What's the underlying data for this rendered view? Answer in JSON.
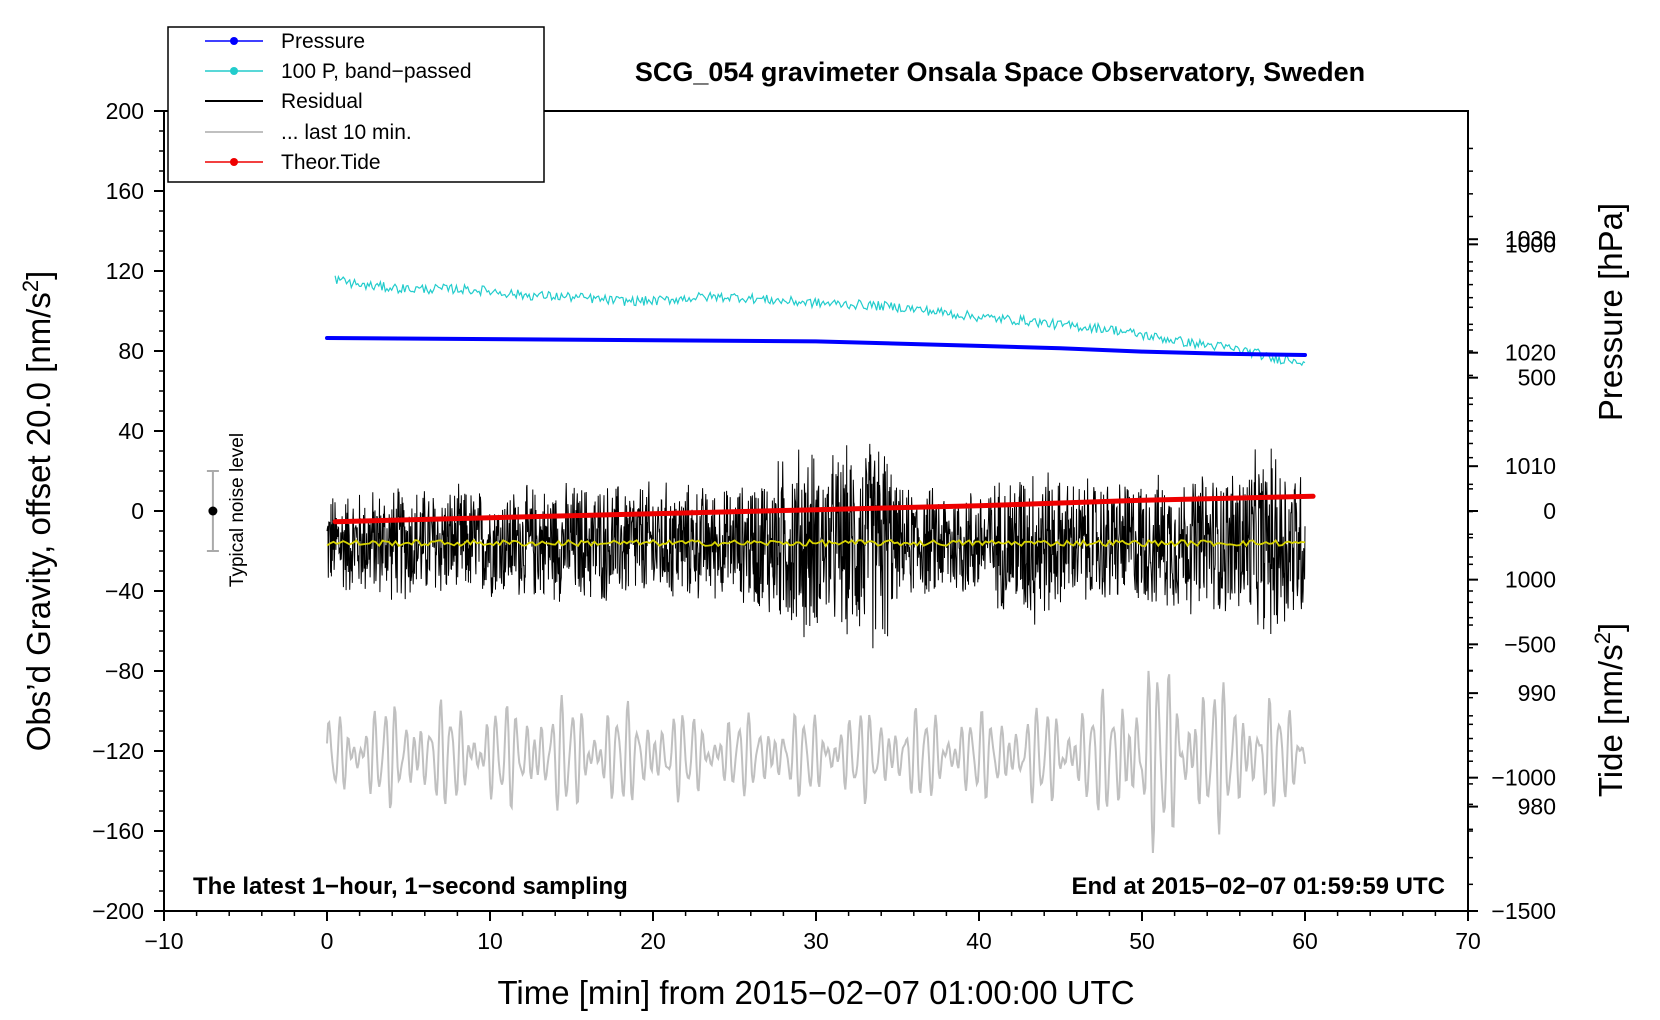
{
  "chart_data": {
    "type": "line",
    "title": "SCG_054 gravimeter Onsala Space Observatory, Sweden",
    "xlabel": "Time [min] from 2015−02−07 01:00:00 UTC",
    "ylabel_left_main": "Obs’d Gravity, offset 20.0 [nm/s",
    "ylabel_left_sup": "2",
    "ylabel_left_close": "]",
    "ylabel_right_pressure": "Pressure [hPa]",
    "ylabel_right_tide_main": "Tide [nm/s",
    "ylabel_right_tide_sup": "2",
    "ylabel_right_tide_close": "]",
    "xlim": [
      -10,
      70
    ],
    "ylim": [
      -200,
      200
    ],
    "pressure_axis_range": [
      970.8,
      1041.3
    ],
    "tide_axis_range": [
      -1500,
      1500
    ],
    "x_ticks": [
      {
        "value": -10,
        "label": "−10"
      },
      {
        "value": 0,
        "label": "0"
      },
      {
        "value": 10,
        "label": "10"
      },
      {
        "value": 20,
        "label": "20"
      },
      {
        "value": 30,
        "label": "30"
      },
      {
        "value": 40,
        "label": "40"
      },
      {
        "value": 50,
        "label": "50"
      },
      {
        "value": 60,
        "label": "60"
      },
      {
        "value": 70,
        "label": "70"
      }
    ],
    "y_ticks": [
      {
        "value": 200,
        "label": "200"
      },
      {
        "value": 160,
        "label": "160"
      },
      {
        "value": 120,
        "label": "120"
      },
      {
        "value": 80,
        "label": "80"
      },
      {
        "value": 40,
        "label": "40"
      },
      {
        "value": 0,
        "label": "0"
      },
      {
        "value": -40,
        "label": "−40"
      },
      {
        "value": -80,
        "label": "−80"
      },
      {
        "value": -120,
        "label": "−120"
      },
      {
        "value": -160,
        "label": "−160"
      },
      {
        "value": -200,
        "label": "−200"
      }
    ],
    "pressure_ticks": [
      {
        "value": 1030,
        "label": "1030"
      },
      {
        "value": 1020,
        "label": "1020"
      },
      {
        "value": 1010,
        "label": "1010"
      },
      {
        "value": 1000,
        "label": "1000"
      },
      {
        "value": 990,
        "label": "990"
      },
      {
        "value": 980,
        "label": "980"
      }
    ],
    "tide_ticks": [
      {
        "value": 1000,
        "label": "1000"
      },
      {
        "value": 500,
        "label": "500"
      },
      {
        "value": 0,
        "label": "0"
      },
      {
        "value": -500,
        "label": "−500"
      },
      {
        "value": -1000,
        "label": "−1000"
      },
      {
        "value": -1500,
        "label": "−1500"
      }
    ],
    "legend": {
      "placement": "top-left",
      "entries": [
        {
          "label": "Pressure",
          "color": "#0000ff",
          "marker": true
        },
        {
          "label": "100 P, band−passed",
          "color": "#22cccc",
          "marker": true
        },
        {
          "label": "Residual",
          "color": "#000000",
          "marker": false
        },
        {
          "label": "... last 10 min.",
          "color": "#c0c0c0",
          "marker": false
        },
        {
          "label": "Theor.Tide",
          "color": "#ee0000",
          "marker": true
        }
      ]
    },
    "noise_bar": {
      "label": "Typical noise level",
      "x": -7,
      "center": 0,
      "low": -20,
      "high": 20
    },
    "footer_left": "The latest 1−hour, 1−second sampling",
    "footer_right": "End at 2015−02−07 01:59:59 UTC",
    "series": [
      {
        "name": "Pressure",
        "axis": "pressure",
        "color": "#0000ff",
        "x": [
          0,
          10,
          20,
          30,
          35,
          40,
          45,
          50,
          55,
          60
        ],
        "y": [
          1021.3,
          1021.2,
          1021.1,
          1021.0,
          1020.8,
          1020.6,
          1020.4,
          1020.1,
          1019.9,
          1019.8
        ]
      },
      {
        "name": "100 P, band−passed",
        "axis": "gravity",
        "color": "#22cccc",
        "x": [
          0.5,
          2,
          5,
          8,
          10,
          12,
          15,
          18,
          20,
          23,
          25,
          28,
          30,
          33,
          35,
          38,
          40,
          43,
          45,
          48,
          50,
          53,
          55,
          57,
          58,
          59,
          60
        ],
        "y": [
          116,
          113,
          111,
          111,
          110,
          108,
          107,
          105,
          105,
          107,
          107,
          105,
          104,
          103,
          102,
          99,
          97,
          95,
          93,
          91,
          88,
          84,
          82,
          79,
          76,
          76,
          75
        ]
      },
      {
        "name": "Residual",
        "axis": "gravity",
        "color": "#000000",
        "baseline": -16,
        "x": [
          0,
          5,
          10,
          15,
          20,
          25,
          29.7,
          30,
          34.2,
          35,
          39.5,
          40,
          43.6,
          45,
          50,
          55,
          58.3,
          60
        ],
        "envelope": [
          28,
          32,
          30,
          33,
          34,
          30,
          58,
          45,
          62,
          30,
          32,
          30,
          48,
          35,
          36,
          40,
          54,
          42
        ],
        "mean_line": {
          "color": "#d6d200",
          "value": -16
        }
      },
      {
        "name": "... last 10 min.",
        "axis": "gravity",
        "color": "#c0c0c0",
        "baseline": -122,
        "x": [
          0,
          5,
          10,
          15,
          20,
          25,
          30,
          35,
          40,
          45,
          48,
          50,
          52,
          55,
          58,
          60
        ],
        "envelope": [
          24,
          30,
          28,
          32,
          26,
          22,
          24,
          26,
          24,
          28,
          35,
          55,
          48,
          40,
          32,
          20
        ]
      },
      {
        "name": "Theor.Tide",
        "axis": "tide",
        "color": "#ee0000",
        "x": [
          0.5,
          10,
          20,
          30,
          40,
          50,
          60.5
        ],
        "y": [
          -40,
          -25,
          -10,
          5,
          20,
          40,
          55
        ]
      }
    ]
  }
}
